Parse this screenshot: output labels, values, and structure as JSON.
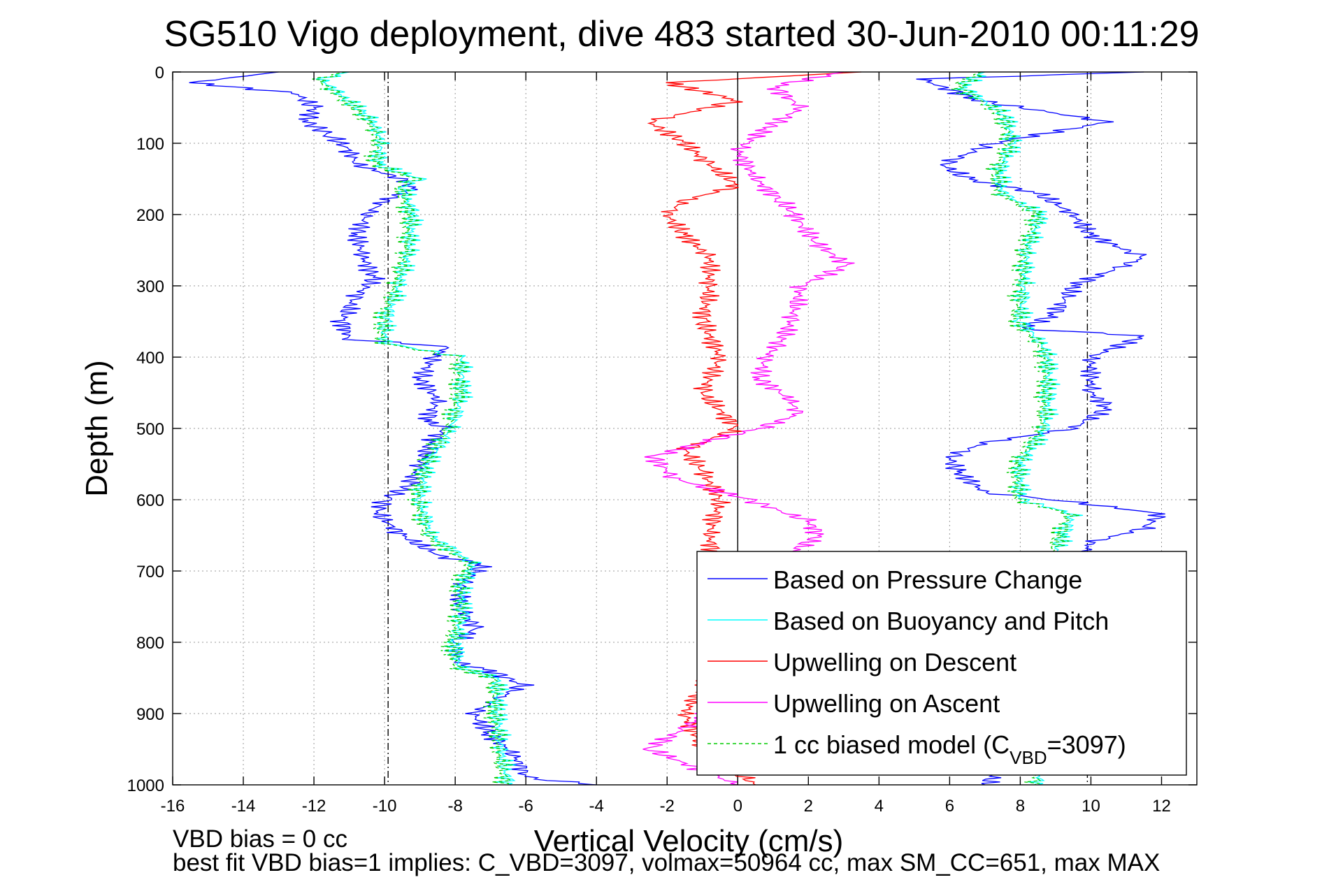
{
  "chart_data": {
    "type": "line",
    "title": "SG510 Vigo deployment, dive 483 started 30-Jun-2010 00:11:29",
    "xlabel": "Vertical Velocity (cm/s)",
    "ylabel": "Depth (m)",
    "xlim": [
      -16,
      13
    ],
    "ylim": [
      0,
      1000
    ],
    "y_reversed": true,
    "grid": true,
    "x_ticks": [
      -16,
      -14,
      -12,
      -10,
      -8,
      -6,
      -4,
      -2,
      0,
      2,
      4,
      6,
      8,
      10,
      12
    ],
    "y_ticks": [
      0,
      100,
      200,
      300,
      400,
      500,
      600,
      700,
      800,
      900,
      1000
    ],
    "legend_position": "bottom-right",
    "reference_lines": [
      {
        "x": -9.9,
        "style": "dash-dot",
        "color": "#000000"
      },
      {
        "x": 9.9,
        "style": "dash-dot",
        "color": "#000000"
      },
      {
        "x": 0,
        "style": "solid",
        "color": "#000000"
      }
    ],
    "notes": [
      "VBD bias = 0 cc",
      "best fit VBD bias=1 implies: C_VBD=3097, volmax=50964 cc, max SM_CC=651, max MAX"
    ],
    "series": [
      {
        "name": "Based on Pressure Change",
        "color": "#0000ff",
        "style": "solid",
        "depth": [
          0,
          15,
          30,
          50,
          70,
          90,
          110,
          130,
          150,
          165,
          180,
          200,
          230,
          260,
          290,
          320,
          350,
          375,
          385,
          400,
          430,
          460,
          490,
          500,
          520,
          550,
          580,
          600,
          620,
          650,
          680,
          690,
          720,
          750,
          780,
          800,
          830,
          840,
          860,
          880,
          900,
          930,
          960,
          990,
          1000
        ],
        "values": [
          -13.0,
          -15.5,
          -12.5,
          -12.0,
          -12.2,
          -11.5,
          -11.0,
          -10.8,
          -9.5,
          -9.2,
          -10.0,
          -10.5,
          -10.8,
          -10.6,
          -10.3,
          -10.9,
          -11.2,
          -11.0,
          -8.2,
          -8.6,
          -9.0,
          -8.5,
          -8.8,
          -8.3,
          -8.7,
          -9.0,
          -9.3,
          -10.0,
          -10.2,
          -9.5,
          -8.4,
          -7.2,
          -7.8,
          -7.9,
          -7.4,
          -8.0,
          -7.9,
          -7.0,
          -6.1,
          -6.8,
          -7.5,
          -7.0,
          -6.3,
          -6.0,
          -4.0
        ]
      },
      {
        "name": "Based on Buoyancy and Pitch",
        "color": "#00ffff",
        "style": "solid",
        "depth": [
          0,
          10,
          30,
          60,
          80,
          100,
          130,
          150,
          160,
          200,
          250,
          300,
          350,
          380,
          400,
          450,
          500,
          550,
          600,
          650,
          690,
          720,
          760,
          800,
          835,
          850,
          900,
          950,
          1000
        ],
        "values": [
          -11.0,
          -11.8,
          -11.3,
          -10.5,
          -10.2,
          -10.1,
          -10.2,
          -9.0,
          -9.5,
          -9.2,
          -9.3,
          -9.6,
          -10.0,
          -10.0,
          -7.8,
          -7.8,
          -8.1,
          -8.8,
          -9.0,
          -8.7,
          -7.5,
          -7.8,
          -7.8,
          -8.0,
          -7.9,
          -6.8,
          -6.8,
          -6.7,
          -6.5
        ]
      },
      {
        "name": "Upwelling on Descent",
        "color": "#ff0000",
        "style": "solid",
        "depth": [
          0,
          15,
          40,
          70,
          100,
          130,
          160,
          180,
          200,
          230,
          260,
          300,
          350,
          400,
          450,
          500,
          530,
          560,
          600,
          650,
          700,
          750,
          800,
          850,
          900,
          950,
          1000
        ],
        "values": [
          3.5,
          -2.0,
          0.0,
          -2.5,
          -1.5,
          -0.8,
          0.0,
          -1.5,
          -2.0,
          -1.5,
          -0.8,
          -0.8,
          -1.0,
          -0.5,
          -1.0,
          0.0,
          -1.5,
          -1.0,
          -0.5,
          -0.8,
          -0.6,
          -0.5,
          -0.4,
          -0.8,
          -1.5,
          -1.0,
          0.5
        ]
      },
      {
        "name": "Upwelling on Ascent",
        "color": "#ff00ff",
        "style": "solid",
        "depth": [
          0,
          20,
          50,
          80,
          110,
          150,
          180,
          200,
          240,
          270,
          300,
          350,
          380,
          400,
          430,
          460,
          480,
          500,
          520,
          540,
          570,
          600,
          630,
          650,
          690,
          740,
          800,
          860,
          920,
          950,
          1000
        ],
        "values": [
          3.0,
          1.0,
          1.8,
          0.8,
          0.0,
          0.5,
          1.2,
          1.6,
          2.2,
          3.1,
          1.8,
          1.5,
          1.2,
          0.8,
          0.6,
          1.5,
          1.7,
          0.6,
          -1.0,
          -2.4,
          -1.8,
          0.3,
          2.0,
          2.3,
          1.0,
          0.8,
          0.6,
          0.2,
          -1.5,
          -2.5,
          0.0
        ]
      },
      {
        "name": "1 cc biased model (C_VBD=3097)",
        "color": "#00cc00",
        "style": "dashed",
        "depth": [
          0,
          10,
          30,
          60,
          80,
          100,
          130,
          150,
          160,
          200,
          250,
          300,
          350,
          380,
          400,
          450,
          500,
          550,
          600,
          650,
          690,
          720,
          760,
          800,
          835,
          850,
          900,
          950,
          1000
        ],
        "values": [
          -11.1,
          -11.9,
          -11.4,
          -10.6,
          -10.3,
          -10.2,
          -10.3,
          -9.1,
          -9.6,
          -9.3,
          -9.4,
          -9.7,
          -10.1,
          -10.1,
          -7.9,
          -7.9,
          -8.2,
          -8.9,
          -9.1,
          -8.8,
          -7.6,
          -7.9,
          -7.9,
          -8.1,
          -8.0,
          -6.9,
          -6.9,
          -6.8,
          -6.6
        ]
      },
      {
        "name": "Based on Pressure Change (ascent)",
        "color": "#0000ff",
        "style": "solid",
        "legend": false,
        "depth": [
          0,
          10,
          40,
          70,
          100,
          130,
          150,
          170,
          200,
          230,
          260,
          270,
          300,
          340,
          360,
          370,
          400,
          450,
          470,
          500,
          520,
          540,
          560,
          590,
          600,
          620,
          640,
          660,
          700,
          800,
          900,
          1000
        ],
        "values": [
          11.5,
          5.2,
          6.8,
          10.5,
          7.2,
          5.8,
          6.5,
          8.5,
          9.5,
          10.0,
          11.5,
          11.0,
          9.5,
          9.0,
          8.0,
          11.5,
          10.0,
          10.0,
          10.5,
          9.5,
          7.0,
          6.0,
          6.2,
          7.0,
          9.0,
          12.0,
          11.5,
          10.0,
          9.5,
          9.5,
          9.0,
          7.0
        ]
      },
      {
        "name": "Based on Buoyancy and Pitch (ascent)",
        "color": "#00ffff",
        "style": "solid",
        "legend": false,
        "depth": [
          0,
          20,
          60,
          100,
          140,
          170,
          200,
          250,
          300,
          350,
          380,
          400,
          450,
          500,
          550,
          600,
          620,
          650,
          700,
          800,
          900,
          1000
        ],
        "values": [
          7.0,
          6.3,
          7.6,
          7.8,
          7.4,
          7.5,
          8.6,
          8.2,
          8.1,
          8.0,
          8.6,
          8.8,
          8.8,
          8.7,
          8.0,
          8.0,
          9.5,
          9.2,
          8.8,
          8.9,
          8.9,
          8.5
        ]
      },
      {
        "name": "1 cc biased model (ascent)",
        "color": "#00cc00",
        "style": "dashed",
        "legend": false,
        "depth": [
          0,
          20,
          60,
          100,
          140,
          170,
          200,
          250,
          300,
          350,
          380,
          400,
          450,
          500,
          550,
          600,
          620,
          650,
          700,
          800,
          900,
          1000
        ],
        "values": [
          6.9,
          6.2,
          7.5,
          7.7,
          7.3,
          7.4,
          8.5,
          8.1,
          8.0,
          7.9,
          8.5,
          8.7,
          8.7,
          8.6,
          7.9,
          7.9,
          9.4,
          9.1,
          8.7,
          8.8,
          8.8,
          8.4
        ]
      }
    ]
  }
}
